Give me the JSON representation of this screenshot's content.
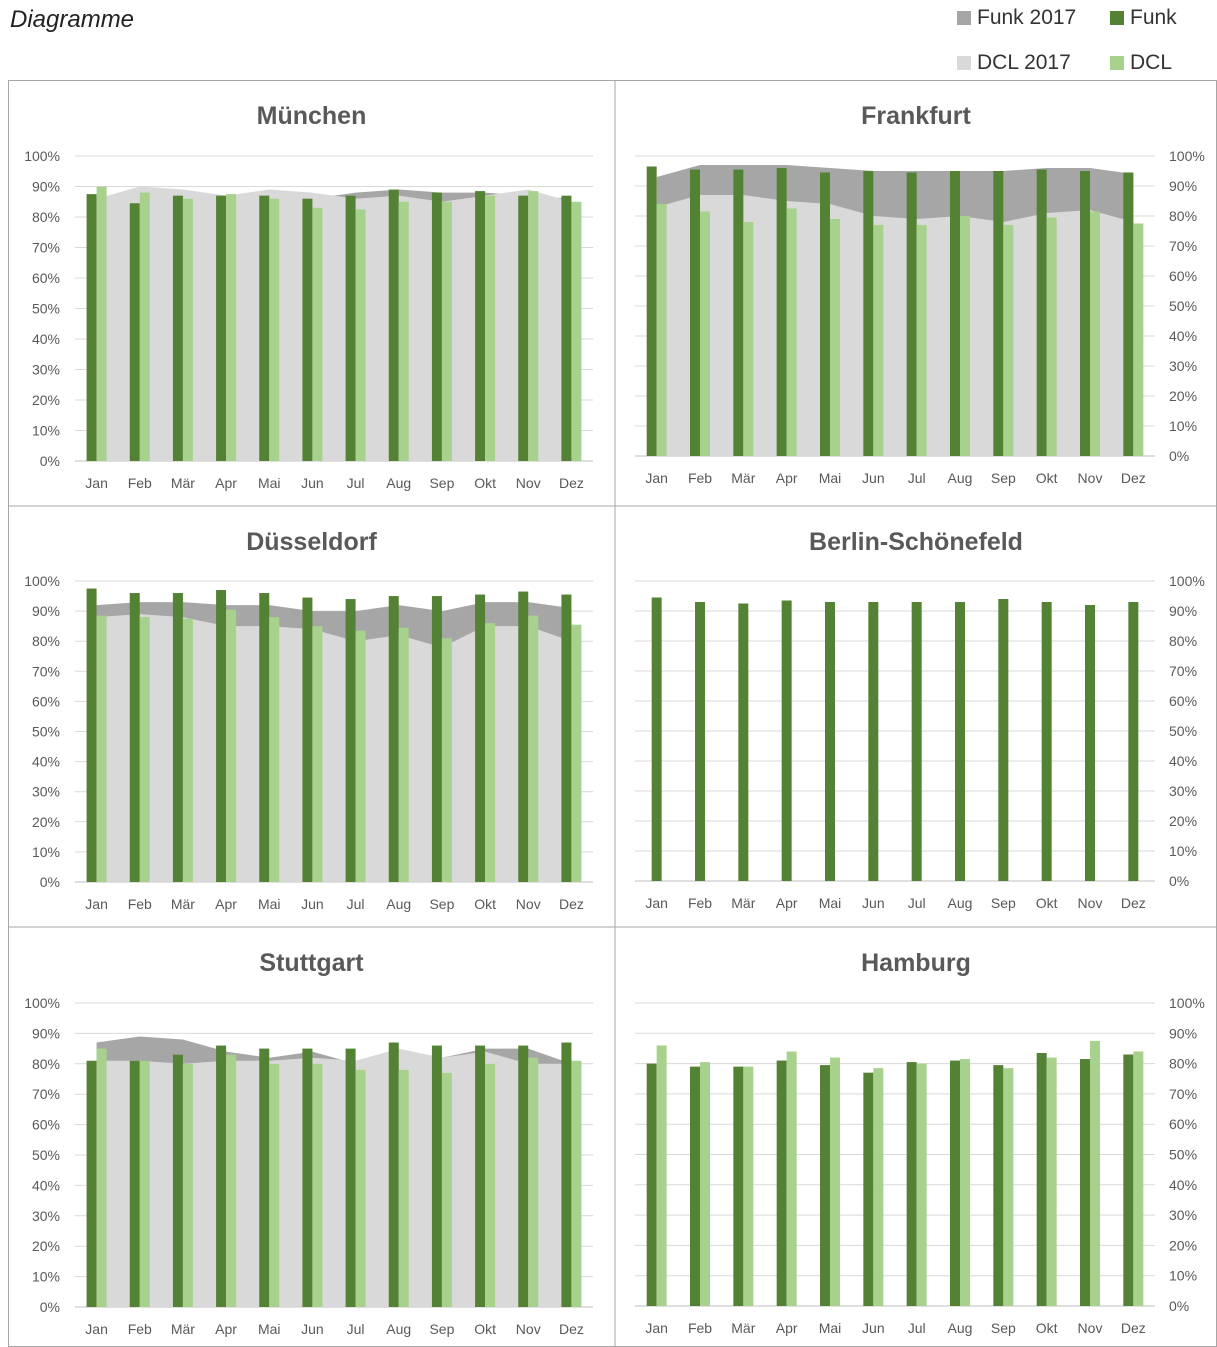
{
  "page": {
    "title": "Diagramme"
  },
  "legend": [
    {
      "label": "Funk 2017",
      "color": "#a6a6a6"
    },
    {
      "label": "Funk",
      "color": "#548235"
    },
    {
      "label": "DCL 2017",
      "color": "#d9d9d9"
    },
    {
      "label": "DCL",
      "color": "#a9d18e"
    }
  ],
  "colors": {
    "funk2017": "#a6a6a6",
    "dcl2017": "#d9d9d9",
    "funk": "#548235",
    "dcl": "#a9d18e",
    "grid": "#d9d9d9",
    "axis": "#bfbfbf"
  },
  "chart_data": [
    {
      "type": "bar",
      "title": "München",
      "categories": [
        "Jan",
        "Feb",
        "Mär",
        "Apr",
        "Mai",
        "Jun",
        "Jul",
        "Aug",
        "Sep",
        "Okt",
        "Nov",
        "Dez"
      ],
      "yticks": [
        "0%",
        "10%",
        "20%",
        "30%",
        "40%",
        "50%",
        "60%",
        "70%",
        "80%",
        "90%",
        "100%"
      ],
      "ylim": [
        0,
        100
      ],
      "yaxis_side": "left",
      "areas": [
        {
          "name": "Funk 2017",
          "values": [
            86,
            85,
            87,
            86,
            86,
            86,
            88,
            89,
            88,
            88,
            87,
            86
          ]
        },
        {
          "name": "DCL 2017",
          "values": [
            86,
            90,
            89,
            87,
            89,
            88,
            86,
            87,
            85,
            87,
            89,
            85
          ]
        }
      ],
      "series": [
        {
          "name": "Funk",
          "values": [
            87.5,
            84.5,
            87,
            87,
            87,
            86,
            87,
            89,
            88,
            88.5,
            87,
            87
          ]
        },
        {
          "name": "DCL",
          "values": [
            90,
            88,
            86,
            87.5,
            86,
            83,
            82.5,
            85,
            85,
            87,
            88.5,
            85
          ]
        }
      ]
    },
    {
      "type": "bar",
      "title": "Frankfurt",
      "categories": [
        "Jan",
        "Feb",
        "Mär",
        "Apr",
        "Mai",
        "Jun",
        "Jul",
        "Aug",
        "Sep",
        "Okt",
        "Nov",
        "Dez"
      ],
      "yticks": [
        "0%",
        "10%",
        "20%",
        "30%",
        "40%",
        "50%",
        "60%",
        "70%",
        "80%",
        "90%",
        "100%"
      ],
      "ylim": [
        0,
        100
      ],
      "yaxis_side": "right",
      "areas": [
        {
          "name": "Funk 2017",
          "values": [
            93,
            97,
            97,
            97,
            96,
            95,
            95,
            95,
            95,
            96,
            96,
            94
          ]
        },
        {
          "name": "DCL 2017",
          "values": [
            83,
            87,
            87,
            85,
            84,
            80,
            79,
            80,
            78,
            81,
            82,
            78
          ]
        }
      ],
      "series": [
        {
          "name": "Funk",
          "values": [
            96.5,
            95.5,
            95.5,
            96,
            94.5,
            95,
            94.5,
            95,
            95,
            95.5,
            95,
            94.5
          ]
        },
        {
          "name": "DCL",
          "values": [
            84,
            81.5,
            78,
            82.5,
            79,
            77,
            77,
            80,
            77,
            79.5,
            81.5,
            77.5
          ]
        }
      ]
    },
    {
      "type": "bar",
      "title": "Düsseldorf",
      "categories": [
        "Jan",
        "Feb",
        "Mär",
        "Apr",
        "Mai",
        "Jun",
        "Jul",
        "Aug",
        "Sep",
        "Okt",
        "Nov",
        "Dez"
      ],
      "yticks": [
        "0%",
        "10%",
        "20%",
        "30%",
        "40%",
        "50%",
        "60%",
        "70%",
        "80%",
        "90%",
        "100%"
      ],
      "ylim": [
        0,
        100
      ],
      "yaxis_side": "left",
      "areas": [
        {
          "name": "Funk 2017",
          "values": [
            92,
            93,
            93,
            92,
            92,
            90,
            90,
            92,
            90,
            93,
            93,
            91
          ]
        },
        {
          "name": "DCL 2017",
          "values": [
            88,
            89,
            88,
            85,
            85,
            84,
            80,
            82,
            78,
            85,
            85,
            80
          ]
        }
      ],
      "series": [
        {
          "name": "Funk",
          "values": [
            97.5,
            96,
            96,
            97,
            96,
            94.5,
            94,
            95,
            95,
            95.5,
            96.5,
            95.5
          ]
        },
        {
          "name": "DCL",
          "values": [
            88.5,
            88,
            87.5,
            90.5,
            88,
            85,
            83.5,
            84.5,
            81,
            86,
            88.5,
            85.5
          ]
        }
      ]
    },
    {
      "type": "bar",
      "title": "Berlin-Schönefeld",
      "categories": [
        "Jan",
        "Feb",
        "Mär",
        "Apr",
        "Mai",
        "Jun",
        "Jul",
        "Aug",
        "Sep",
        "Okt",
        "Nov",
        "Dez"
      ],
      "yticks": [
        "0%",
        "10%",
        "20%",
        "30%",
        "40%",
        "50%",
        "60%",
        "70%",
        "80%",
        "90%",
        "100%"
      ],
      "ylim": [
        0,
        100
      ],
      "yaxis_side": "right",
      "areas": [],
      "series": [
        {
          "name": "Funk",
          "values": [
            94.5,
            93,
            92.5,
            93.5,
            93,
            93,
            93,
            93,
            94,
            93,
            92,
            93
          ]
        }
      ]
    },
    {
      "type": "bar",
      "title": "Stuttgart",
      "categories": [
        "Jan",
        "Feb",
        "Mär",
        "Apr",
        "Mai",
        "Jun",
        "Jul",
        "Aug",
        "Sep",
        "Okt",
        "Nov",
        "Dez"
      ],
      "yticks": [
        "0%",
        "10%",
        "20%",
        "30%",
        "40%",
        "50%",
        "60%",
        "70%",
        "80%",
        "90%",
        "100%"
      ],
      "ylim": [
        0,
        100
      ],
      "yaxis_side": "left",
      "areas": [
        {
          "name": "Funk 2017",
          "values": [
            87,
            89,
            88,
            84,
            82,
            84,
            80,
            84,
            82,
            85,
            85,
            80
          ]
        },
        {
          "name": "DCL 2017",
          "values": [
            81,
            81,
            80,
            81,
            81,
            82,
            81,
            85,
            82,
            84,
            80,
            80
          ]
        }
      ],
      "series": [
        {
          "name": "Funk",
          "values": [
            81,
            81,
            83,
            86,
            85,
            85,
            85,
            87,
            86,
            86,
            86,
            87
          ]
        },
        {
          "name": "DCL",
          "values": [
            85,
            81,
            80,
            83,
            80,
            80,
            78,
            78,
            77,
            80,
            82,
            81
          ]
        }
      ]
    },
    {
      "type": "bar",
      "title": "Hamburg",
      "categories": [
        "Jan",
        "Feb",
        "Mär",
        "Apr",
        "Mai",
        "Jun",
        "Jul",
        "Aug",
        "Sep",
        "Okt",
        "Nov",
        "Dez"
      ],
      "yticks": [
        "0%",
        "10%",
        "20%",
        "30%",
        "40%",
        "50%",
        "60%",
        "70%",
        "80%",
        "90%",
        "100%"
      ],
      "ylim": [
        0,
        100
      ],
      "yaxis_side": "right",
      "areas": [],
      "series": [
        {
          "name": "Funk",
          "values": [
            80,
            79,
            79,
            81,
            79.5,
            77,
            80.5,
            81,
            79.5,
            83.5,
            81.5,
            83
          ]
        },
        {
          "name": "DCL",
          "values": [
            86,
            80.5,
            79,
            84,
            82,
            78.5,
            80,
            81.5,
            78.5,
            82,
            87.5,
            84
          ]
        }
      ]
    }
  ]
}
